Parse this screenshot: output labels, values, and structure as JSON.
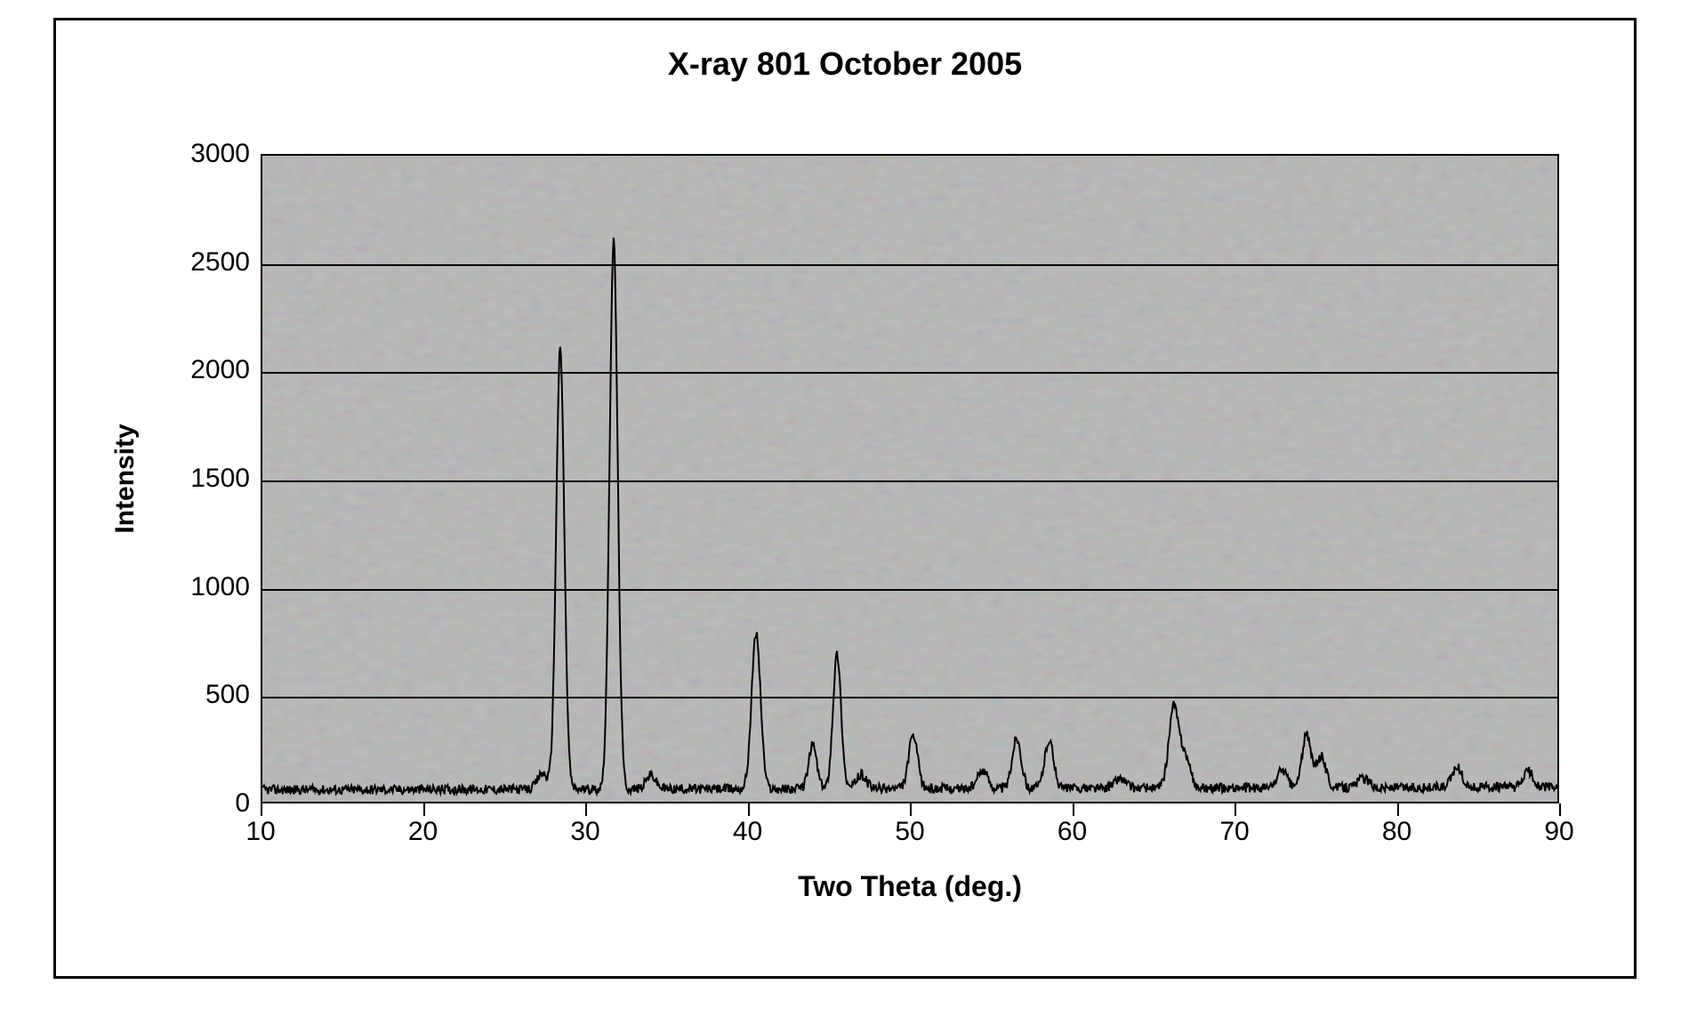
{
  "chart": {
    "type": "line",
    "title": "X-ray 801 October 2005",
    "title_fontsize": 36,
    "title_fontweight": "bold",
    "xlabel": "Two Theta (deg.)",
    "ylabel": "Intensity",
    "label_fontsize": 32,
    "xlim": [
      10,
      90
    ],
    "ylim": [
      0,
      3000
    ],
    "ytick_step": 500,
    "xtick_step": 10,
    "yticks": [
      0,
      500,
      1000,
      1500,
      2000,
      2500,
      3000
    ],
    "xticks": [
      10,
      20,
      30,
      40,
      50,
      60,
      70,
      80,
      90
    ],
    "background_color": "#ffffff",
    "plot_background_color": "#bcbcbc",
    "grid_color": "#000000",
    "frame_border_color": "#000000",
    "line_color": "#000000",
    "line_width": 2,
    "tick_fontsize": 30,
    "baseline_intensity": 55,
    "baseline_noise_amplitude": 22,
    "peaks": [
      {
        "two_theta": 27.3,
        "intensity": 130,
        "width": 0.6
      },
      {
        "two_theta": 28.4,
        "intensity": 2100,
        "width": 0.5
      },
      {
        "two_theta": 31.7,
        "intensity": 2600,
        "width": 0.5
      },
      {
        "two_theta": 34.0,
        "intensity": 120,
        "width": 0.6
      },
      {
        "two_theta": 40.5,
        "intensity": 780,
        "width": 0.55
      },
      {
        "two_theta": 44.0,
        "intensity": 260,
        "width": 0.5
      },
      {
        "two_theta": 45.5,
        "intensity": 680,
        "width": 0.5
      },
      {
        "two_theta": 47.0,
        "intensity": 120,
        "width": 0.6
      },
      {
        "two_theta": 50.2,
        "intensity": 300,
        "width": 0.55
      },
      {
        "two_theta": 54.5,
        "intensity": 140,
        "width": 0.6
      },
      {
        "two_theta": 56.6,
        "intensity": 290,
        "width": 0.55
      },
      {
        "two_theta": 58.6,
        "intensity": 280,
        "width": 0.55
      },
      {
        "two_theta": 63.0,
        "intensity": 100,
        "width": 0.7
      },
      {
        "two_theta": 66.3,
        "intensity": 430,
        "width": 0.6
      },
      {
        "two_theta": 67.0,
        "intensity": 200,
        "width": 0.6
      },
      {
        "two_theta": 73.0,
        "intensity": 140,
        "width": 0.6
      },
      {
        "two_theta": 74.5,
        "intensity": 300,
        "width": 0.55
      },
      {
        "two_theta": 75.4,
        "intensity": 200,
        "width": 0.6
      },
      {
        "two_theta": 78.0,
        "intensity": 100,
        "width": 0.7
      },
      {
        "two_theta": 83.8,
        "intensity": 150,
        "width": 0.6
      },
      {
        "two_theta": 88.2,
        "intensity": 130,
        "width": 0.6
      }
    ]
  }
}
